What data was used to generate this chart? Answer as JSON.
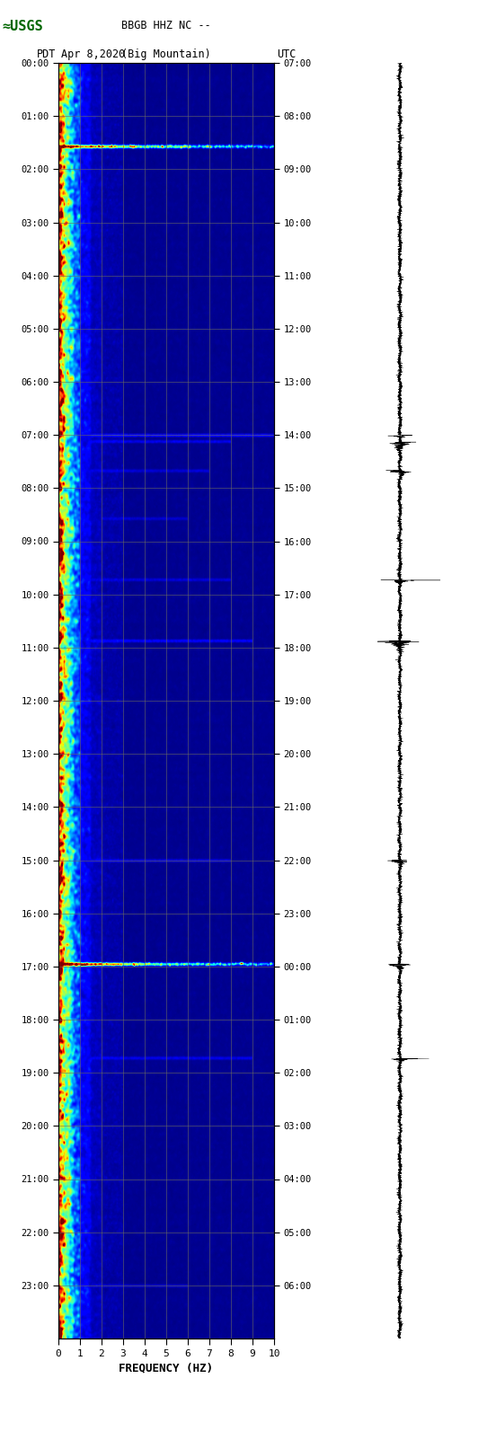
{
  "title_line1": "BBGB HHZ NC --",
  "title_line2": "(Big Mountain)",
  "left_label": "PDT",
  "date_label": "Apr 8,2020",
  "right_label": "UTC",
  "xlabel": "FREQUENCY (HZ)",
  "freq_min": 0,
  "freq_max": 10,
  "time_hours": 24,
  "left_yticks": [
    "00:00",
    "01:00",
    "02:00",
    "03:00",
    "04:00",
    "05:00",
    "06:00",
    "07:00",
    "08:00",
    "09:00",
    "10:00",
    "11:00",
    "12:00",
    "13:00",
    "14:00",
    "15:00",
    "16:00",
    "17:00",
    "18:00",
    "19:00",
    "20:00",
    "21:00",
    "22:00",
    "23:00"
  ],
  "right_yticks": [
    "07:00",
    "08:00",
    "09:00",
    "10:00",
    "11:00",
    "12:00",
    "13:00",
    "14:00",
    "15:00",
    "16:00",
    "17:00",
    "18:00",
    "19:00",
    "20:00",
    "21:00",
    "22:00",
    "23:00",
    "00:00",
    "01:00",
    "02:00",
    "03:00",
    "04:00",
    "05:00",
    "06:00"
  ],
  "grid_color": "#666666",
  "background_color": "#000020",
  "fig_bg": "#ffffff",
  "usgs_green": "#006600",
  "red_line_hour1": 1.58,
  "red_line_hour2": 16.95,
  "cyan_line_hour1": 7.0,
  "cyan_line_hour2": 7.13,
  "cyan_line_hour3": 7.67,
  "cyan_line_hour4": 9.73,
  "cyan_line_hour5": 10.87,
  "cyan_line_hour6": 15.0,
  "cyan_line_hour7": 18.73,
  "spectrogram_colormap": "jet"
}
